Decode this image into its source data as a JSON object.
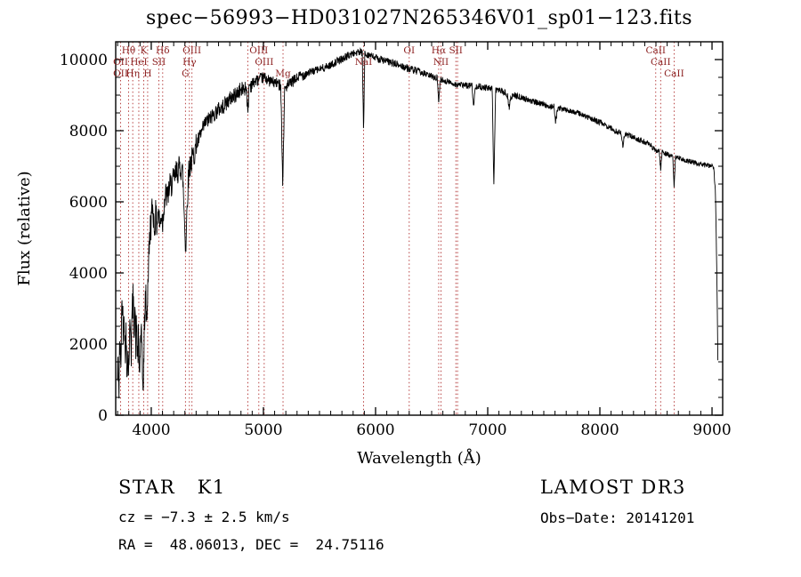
{
  "colors": {
    "background": "#ffffff",
    "spectrum_line": "#000000",
    "axis": "#000000",
    "marker_line": "#b03030",
    "marker_label": "#8b2020"
  },
  "chart_data": {
    "type": "line",
    "title": "spec−56993−HD031027N265346V01_sp01−123.fits",
    "xlabel": "Wavelength (Å)",
    "ylabel": "Flux (relative)",
    "xlim": [
      3683,
      9095
    ],
    "ylim": [
      0,
      10500
    ],
    "xticks": [
      4000,
      5000,
      6000,
      7000,
      8000,
      9000
    ],
    "yticks": [
      0,
      2000,
      4000,
      6000,
      8000,
      10000
    ],
    "grid": false,
    "noise_seed": 42,
    "noise_segments": [
      [
        3690,
        4000,
        500
      ],
      [
        4000,
        4400,
        380
      ],
      [
        4400,
        4900,
        230
      ],
      [
        4900,
        5400,
        160
      ],
      [
        5400,
        6400,
        110
      ],
      [
        6400,
        7400,
        90
      ],
      [
        7400,
        8400,
        80
      ],
      [
        8400,
        9060,
        70
      ]
    ],
    "continuum_points": [
      [
        3697,
        900
      ],
      [
        3705,
        1500
      ],
      [
        3712,
        700
      ],
      [
        3720,
        2200
      ],
      [
        3728,
        1200
      ],
      [
        3735,
        2800
      ],
      [
        3742,
        3300
      ],
      [
        3750,
        2400
      ],
      [
        3758,
        3100
      ],
      [
        3766,
        1700
      ],
      [
        3775,
        2300
      ],
      [
        3783,
        1100
      ],
      [
        3790,
        1900
      ],
      [
        3798,
        1300
      ],
      [
        3806,
        2100
      ],
      [
        3815,
        2700
      ],
      [
        3822,
        1800
      ],
      [
        3830,
        2900
      ],
      [
        3838,
        3300
      ],
      [
        3846,
        2500
      ],
      [
        3855,
        3100
      ],
      [
        3862,
        2000
      ],
      [
        3870,
        2600
      ],
      [
        3878,
        1500
      ],
      [
        3886,
        2200
      ],
      [
        3894,
        1100
      ],
      [
        3902,
        1800
      ],
      [
        3910,
        2500
      ],
      [
        3918,
        1400
      ],
      [
        3926,
        800
      ],
      [
        3934,
        1600
      ],
      [
        3942,
        2800
      ],
      [
        3950,
        3400
      ],
      [
        3958,
        2600
      ],
      [
        3966,
        3300
      ],
      [
        3974,
        4100
      ],
      [
        3982,
        4700
      ],
      [
        3990,
        5200
      ],
      [
        4000,
        5500
      ],
      [
        4010,
        5900
      ],
      [
        4020,
        5600
      ],
      [
        4030,
        5200
      ],
      [
        4040,
        5700
      ],
      [
        4050,
        5300
      ],
      [
        4060,
        5800
      ],
      [
        4070,
        5500
      ],
      [
        4080,
        5300
      ],
      [
        4090,
        5700
      ],
      [
        4102,
        5400
      ],
      [
        4115,
        6000
      ],
      [
        4130,
        6200
      ],
      [
        4145,
        6100
      ],
      [
        4160,
        6400
      ],
      [
        4180,
        6500
      ],
      [
        4200,
        6600
      ],
      [
        4220,
        6800
      ],
      [
        4240,
        6900
      ],
      [
        4260,
        7000
      ],
      [
        4280,
        6800
      ],
      [
        4295,
        5600
      ],
      [
        4308,
        4600
      ],
      [
        4320,
        6000
      ],
      [
        4335,
        6900
      ],
      [
        4350,
        7100
      ],
      [
        4365,
        7200
      ],
      [
        4385,
        7400
      ],
      [
        4405,
        7600
      ],
      [
        4430,
        7800
      ],
      [
        4455,
        8000
      ],
      [
        4480,
        8200
      ],
      [
        4510,
        8300
      ],
      [
        4540,
        8400
      ],
      [
        4570,
        8500
      ],
      [
        4600,
        8600
      ],
      [
        4630,
        8650
      ],
      [
        4660,
        8750
      ],
      [
        4690,
        8850
      ],
      [
        4720,
        8950
      ],
      [
        4750,
        9000
      ],
      [
        4780,
        9100
      ],
      [
        4810,
        9150
      ],
      [
        4835,
        9200
      ],
      [
        4850,
        9250
      ],
      [
        4861,
        8350
      ],
      [
        4872,
        9280
      ],
      [
        4890,
        9300
      ],
      [
        4910,
        9350
      ],
      [
        4930,
        9400
      ],
      [
        4950,
        9420
      ],
      [
        4970,
        9450
      ],
      [
        4990,
        9480
      ],
      [
        5010,
        9500
      ],
      [
        5030,
        9450
      ],
      [
        5050,
        9400
      ],
      [
        5070,
        9380
      ],
      [
        5090,
        9360
      ],
      [
        5110,
        9340
      ],
      [
        5130,
        9320
      ],
      [
        5155,
        9300
      ],
      [
        5172,
        6500
      ],
      [
        5190,
        9200
      ],
      [
        5210,
        9250
      ],
      [
        5230,
        9300
      ],
      [
        5250,
        9350
      ],
      [
        5270,
        9400
      ],
      [
        5290,
        9450
      ],
      [
        5310,
        9500
      ],
      [
        5330,
        9550
      ],
      [
        5360,
        9580
      ],
      [
        5390,
        9620
      ],
      [
        5420,
        9650
      ],
      [
        5450,
        9680
      ],
      [
        5480,
        9710
      ],
      [
        5510,
        9740
      ],
      [
        5540,
        9770
      ],
      [
        5570,
        9800
      ],
      [
        5600,
        9850
      ],
      [
        5630,
        9900
      ],
      [
        5660,
        9950
      ],
      [
        5690,
        10000
      ],
      [
        5720,
        10050
      ],
      [
        5750,
        10100
      ],
      [
        5780,
        10150
      ],
      [
        5810,
        10180
      ],
      [
        5840,
        10200
      ],
      [
        5865,
        10200
      ],
      [
        5882,
        10180
      ],
      [
        5893,
        7900
      ],
      [
        5904,
        10150
      ],
      [
        5930,
        10150
      ],
      [
        5960,
        10100
      ],
      [
        5990,
        10050
      ],
      [
        6020,
        10020
      ],
      [
        6050,
        10000
      ],
      [
        6080,
        9970
      ],
      [
        6110,
        9940
      ],
      [
        6140,
        9910
      ],
      [
        6170,
        9880
      ],
      [
        6200,
        9850
      ],
      [
        6230,
        9820
      ],
      [
        6260,
        9790
      ],
      [
        6290,
        9750
      ],
      [
        6320,
        9720
      ],
      [
        6350,
        9690
      ],
      [
        6380,
        9660
      ],
      [
        6410,
        9630
      ],
      [
        6440,
        9600
      ],
      [
        6470,
        9560
      ],
      [
        6500,
        9530
      ],
      [
        6530,
        9500
      ],
      [
        6550,
        9480
      ],
      [
        6563,
        8800
      ],
      [
        6578,
        9440
      ],
      [
        6600,
        9420
      ],
      [
        6630,
        9390
      ],
      [
        6660,
        9360
      ],
      [
        6690,
        9330
      ],
      [
        6720,
        9300
      ],
      [
        6750,
        9290
      ],
      [
        6780,
        9280
      ],
      [
        6810,
        9270
      ],
      [
        6840,
        9270
      ],
      [
        6860,
        9280
      ],
      [
        6875,
        8650
      ],
      [
        6890,
        9260
      ],
      [
        6920,
        9250
      ],
      [
        6950,
        9230
      ],
      [
        6980,
        9210
      ],
      [
        7010,
        9190
      ],
      [
        7040,
        9180
      ],
      [
        7055,
        6400
      ],
      [
        7070,
        9160
      ],
      [
        7100,
        9130
      ],
      [
        7130,
        9100
      ],
      [
        7160,
        9050
      ],
      [
        7180,
        8950
      ],
      [
        7192,
        8600
      ],
      [
        7205,
        8930
      ],
      [
        7230,
        9000
      ],
      [
        7260,
        8970
      ],
      [
        7290,
        8940
      ],
      [
        7320,
        8910
      ],
      [
        7350,
        8880
      ],
      [
        7380,
        8850
      ],
      [
        7410,
        8820
      ],
      [
        7440,
        8790
      ],
      [
        7470,
        8760
      ],
      [
        7500,
        8730
      ],
      [
        7530,
        8700
      ],
      [
        7560,
        8690
      ],
      [
        7590,
        8680
      ],
      [
        7605,
        8250
      ],
      [
        7625,
        8640
      ],
      [
        7650,
        8620
      ],
      [
        7680,
        8600
      ],
      [
        7710,
        8580
      ],
      [
        7740,
        8560
      ],
      [
        7770,
        8530
      ],
      [
        7800,
        8500
      ],
      [
        7830,
        8460
      ],
      [
        7860,
        8420
      ],
      [
        7890,
        8380
      ],
      [
        7920,
        8340
      ],
      [
        7950,
        8300
      ],
      [
        7980,
        8260
      ],
      [
        8010,
        8220
      ],
      [
        8040,
        8180
      ],
      [
        8070,
        8120
      ],
      [
        8100,
        8060
      ],
      [
        8130,
        8000
      ],
      [
        8160,
        7960
      ],
      [
        8190,
        7950
      ],
      [
        8205,
        7550
      ],
      [
        8220,
        7900
      ],
      [
        8250,
        7870
      ],
      [
        8280,
        7840
      ],
      [
        8310,
        7800
      ],
      [
        8340,
        7760
      ],
      [
        8370,
        7720
      ],
      [
        8400,
        7680
      ],
      [
        8430,
        7640
      ],
      [
        8460,
        7560
      ],
      [
        8490,
        7480
      ],
      [
        8500,
        7450
      ],
      [
        8512,
        7430
      ],
      [
        8530,
        7420
      ],
      [
        8542,
        6900
      ],
      [
        8555,
        7400
      ],
      [
        8580,
        7360
      ],
      [
        8610,
        7320
      ],
      [
        8635,
        7290
      ],
      [
        8650,
        7280
      ],
      [
        8662,
        6400
      ],
      [
        8675,
        7260
      ],
      [
        8700,
        7240
      ],
      [
        8730,
        7210
      ],
      [
        8760,
        7180
      ],
      [
        8790,
        7150
      ],
      [
        8820,
        7120
      ],
      [
        8850,
        7100
      ],
      [
        8880,
        7070
      ],
      [
        8910,
        7050
      ],
      [
        8940,
        7030
      ],
      [
        8970,
        7010
      ],
      [
        9000,
        7000
      ],
      [
        9015,
        6950
      ],
      [
        9030,
        6300
      ],
      [
        9042,
        4200
      ],
      [
        9052,
        1600
      ]
    ],
    "spectral_lines": [
      {
        "label": "Hθ",
        "wavelength": 3798,
        "row": 0
      },
      {
        "label": "K",
        "wavelength": 3933,
        "row": 0
      },
      {
        "label": "Hδ",
        "wavelength": 4102,
        "row": 0
      },
      {
        "label": "OIII",
        "wavelength": 4363,
        "row": 0
      },
      {
        "label": "OIII",
        "wavelength": 4959,
        "row": 0
      },
      {
        "label": "OI",
        "wavelength": 6300,
        "row": 0
      },
      {
        "label": "Hα",
        "wavelength": 6563,
        "row": 0
      },
      {
        "label": "SII",
        "wavelength": 6716,
        "row": 0
      },
      {
        "label": "CaII",
        "wavelength": 8498,
        "row": 0
      },
      {
        "label": "OII",
        "wavelength": 3727,
        "row": 1
      },
      {
        "label": "HeI",
        "wavelength": 3889,
        "row": 1
      },
      {
        "label": "SII",
        "wavelength": 4068,
        "row": 1
      },
      {
        "label": "Hγ",
        "wavelength": 4340,
        "row": 1
      },
      {
        "label": "OIII",
        "wavelength": 5007,
        "row": 1
      },
      {
        "label": "NaI",
        "wavelength": 5893,
        "row": 1
      },
      {
        "label": "NII",
        "wavelength": 6583,
        "row": 1
      },
      {
        "label": "CaII",
        "wavelength": 8542,
        "row": 1
      },
      {
        "label": "OII",
        "wavelength": 3727,
        "row": 2
      },
      {
        "label": "Hη",
        "wavelength": 3835,
        "row": 2
      },
      {
        "label": "H",
        "wavelength": 3968,
        "row": 2
      },
      {
        "label": "G",
        "wavelength": 4305,
        "row": 2
      },
      {
        "label": "Mg",
        "wavelength": 5175,
        "row": 2
      },
      {
        "label": "CaII",
        "wavelength": 8662,
        "row": 2
      },
      {
        "label": "",
        "wavelength": 4861,
        "row": -1
      },
      {
        "label": "",
        "wavelength": 6731,
        "row": -1
      }
    ]
  },
  "footer": {
    "class_label": "STAR   K1",
    "survey": "LAMOST DR3",
    "cz": "cz = −7.3 ± 2.5 km/s",
    "obs_date": "Obs−Date: 20141201",
    "coords": "RA =  48.06013, DEC =  24.75116"
  }
}
